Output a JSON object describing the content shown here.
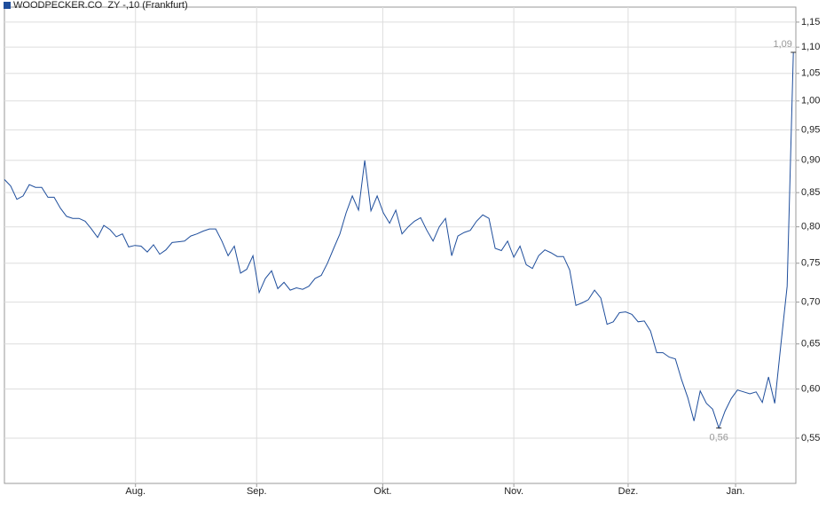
{
  "chart_data": {
    "type": "line",
    "series": [
      {
        "name": "WOODPECKER.CO  ZY -,10 (Frankfurt)",
        "color": "#1f4e9c",
        "values": [
          0.87,
          0.86,
          0.84,
          0.845,
          0.862,
          0.858,
          0.858,
          0.843,
          0.843,
          0.827,
          0.815,
          0.812,
          0.812,
          0.808,
          0.797,
          0.785,
          0.802,
          0.796,
          0.786,
          0.79,
          0.772,
          0.774,
          0.773,
          0.765,
          0.775,
          0.762,
          0.768,
          0.778,
          0.779,
          0.78,
          0.787,
          0.79,
          0.794,
          0.797,
          0.797,
          0.78,
          0.76,
          0.773,
          0.737,
          0.742,
          0.76,
          0.712,
          0.73,
          0.74,
          0.717,
          0.725,
          0.715,
          0.718,
          0.716,
          0.72,
          0.73,
          0.734,
          0.75,
          0.77,
          0.79,
          0.82,
          0.845,
          0.824,
          0.9,
          0.823,
          0.845,
          0.82,
          0.805,
          0.824,
          0.79,
          0.8,
          0.808,
          0.813,
          0.795,
          0.78,
          0.8,
          0.812,
          0.76,
          0.787,
          0.792,
          0.795,
          0.808,
          0.817,
          0.812,
          0.77,
          0.767,
          0.78,
          0.758,
          0.773,
          0.748,
          0.743,
          0.76,
          0.768,
          0.764,
          0.759,
          0.759,
          0.741,
          0.696,
          0.699,
          0.703,
          0.715,
          0.705,
          0.673,
          0.676,
          0.687,
          0.688,
          0.685,
          0.676,
          0.677,
          0.665,
          0.64,
          0.64,
          0.635,
          0.633,
          0.61,
          0.591,
          0.567,
          0.598,
          0.585,
          0.579,
          0.56,
          0.577,
          0.59,
          0.599,
          0.597,
          0.595,
          0.597,
          0.586,
          0.613,
          0.585,
          0.65,
          0.72,
          1.09
        ]
      }
    ],
    "annotations": [
      {
        "text": "1,09",
        "value": 1.09
      },
      {
        "text": "0,56",
        "value": 0.56
      }
    ],
    "log_scale": true,
    "grid": true,
    "ylim": [
      0.5076,
      1.181
    ],
    "yticks": [
      {
        "value": 0.55,
        "label": "0,55"
      },
      {
        "value": 0.6,
        "label": "0,60"
      },
      {
        "value": 0.65,
        "label": "0,65"
      },
      {
        "value": 0.7,
        "label": "0,70"
      },
      {
        "value": 0.75,
        "label": "0,75"
      },
      {
        "value": 0.8,
        "label": "0,80"
      },
      {
        "value": 0.85,
        "label": "0,85"
      },
      {
        "value": 0.9,
        "label": "0,90"
      },
      {
        "value": 0.95,
        "label": "0,95"
      },
      {
        "value": 1.0,
        "label": "1,00"
      },
      {
        "value": 1.05,
        "label": "1,05"
      },
      {
        "value": 1.1,
        "label": "1,10"
      },
      {
        "value": 1.15,
        "label": "1,15"
      }
    ],
    "xlim": [
      0,
      127.4
    ],
    "xticks": [
      {
        "value": 21.1,
        "label": "Aug."
      },
      {
        "value": 40.6,
        "label": "Sep."
      },
      {
        "value": 60.9,
        "label": "Okt."
      },
      {
        "value": 82,
        "label": "Nov."
      },
      {
        "value": 100.4,
        "label": "Dez."
      },
      {
        "value": 117.7,
        "label": "Jan."
      }
    ]
  }
}
